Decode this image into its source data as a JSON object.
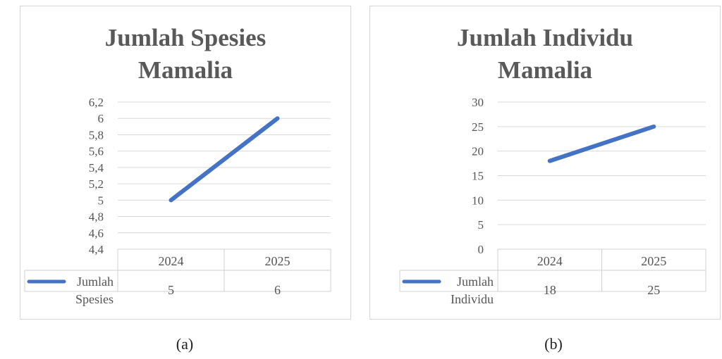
{
  "charts": [
    {
      "title_lines": [
        "Jumlah Spesies",
        "Mamalia"
      ],
      "caption": "(a)"
    },
    {
      "title_lines": [
        "Jumlah Individu",
        "Mamalia"
      ],
      "caption": "(b)"
    }
  ],
  "chart_data": [
    {
      "type": "line",
      "title": "Jumlah Spesies Mamalia",
      "categories": [
        "2024",
        "2025"
      ],
      "series": [
        {
          "name": "Jumlah Spesies",
          "values": [
            5,
            6
          ],
          "color": "#4472c4"
        }
      ],
      "ylim": [
        4.4,
        6.2
      ],
      "yticks": [
        "6,2",
        "6",
        "5,8",
        "5,6",
        "5,4",
        "5,2",
        "5",
        "4,8",
        "4,6",
        "4,4"
      ],
      "ytick_values": [
        6.2,
        6,
        5.8,
        5.6,
        5.4,
        5.2,
        5,
        4.8,
        4.6,
        4.4
      ],
      "legend_lines": [
        "Jumlah",
        "Spesies"
      ],
      "table_values": [
        "5",
        "6"
      ],
      "grid": true,
      "legend": "data-table"
    },
    {
      "type": "line",
      "title": "Jumlah Individu Mamalia",
      "categories": [
        "2024",
        "2025"
      ],
      "series": [
        {
          "name": "Jumlah Individu",
          "values": [
            18,
            25
          ],
          "color": "#4472c4"
        }
      ],
      "ylim": [
        0,
        30
      ],
      "yticks": [
        "30",
        "25",
        "20",
        "15",
        "10",
        "5",
        "0"
      ],
      "ytick_values": [
        30,
        25,
        20,
        15,
        10,
        5,
        0
      ],
      "legend_lines": [
        "Jumlah",
        "Individu"
      ],
      "table_values": [
        "18",
        "25"
      ],
      "grid": true,
      "legend": "data-table"
    }
  ]
}
